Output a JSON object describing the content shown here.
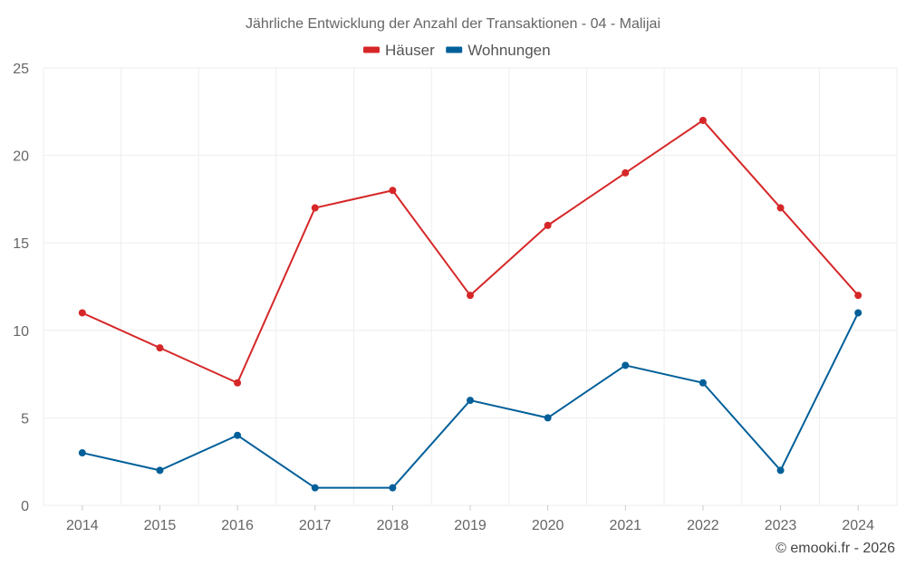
{
  "chart_data": {
    "type": "line",
    "title": "Jährliche Entwicklung der Anzahl der Transaktionen - 04 - Malijai",
    "xlabel": "",
    "ylabel": "",
    "ylim": [
      0,
      25
    ],
    "yticks": [
      0,
      5,
      10,
      15,
      20,
      25
    ],
    "grid": true,
    "legend_position": "top-center",
    "categories": [
      "2014",
      "2015",
      "2016",
      "2017",
      "2018",
      "2019",
      "2020",
      "2021",
      "2022",
      "2023",
      "2024"
    ],
    "series": [
      {
        "name": "Häuser",
        "color": "#d62728",
        "values": [
          11,
          9,
          7,
          17,
          18,
          12,
          16,
          19,
          22,
          17,
          12
        ]
      },
      {
        "name": "Wohnungen",
        "color": "#005f99",
        "values": [
          3,
          2,
          4,
          1,
          1,
          6,
          5,
          8,
          7,
          2,
          11
        ]
      }
    ]
  },
  "credit": "© emooki.fr - 2026"
}
